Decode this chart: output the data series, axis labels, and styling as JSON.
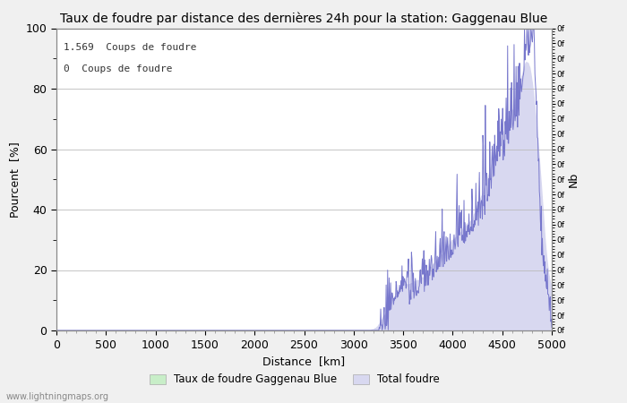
{
  "title": "Taux de foudre par distance des dernières 24h pour la station: Gaggenau Blue",
  "xlabel": "Distance  [km]",
  "ylabel_left": "Pourcent  [%]",
  "ylabel_right": "Nb",
  "annotation_line1": "1.569  Coups de foudre",
  "annotation_line2": "0  Coups de foudre",
  "legend_label1": "Taux de foudre Gaggenau Blue",
  "legend_label2": "Total foudre",
  "watermark": "www.lightningmaps.org",
  "xlim": [
    0,
    5000
  ],
  "ylim": [
    0,
    100
  ],
  "xticks": [
    0,
    500,
    1000,
    1500,
    2000,
    2500,
    3000,
    3500,
    4000,
    4500,
    5000
  ],
  "yticks_left": [
    0,
    20,
    40,
    60,
    80,
    100
  ],
  "bg_color": "#f0f0f0",
  "plot_bg_color": "#ffffff",
  "line_color": "#7777cc",
  "fill_color": "#d8d8f0",
  "fill_green_color": "#c8eec8",
  "grid_color": "#bbbbbb",
  "title_fontsize": 10,
  "label_fontsize": 9,
  "tick_fontsize": 9,
  "annotation_fontsize": 8,
  "legend_fontsize": 8.5
}
